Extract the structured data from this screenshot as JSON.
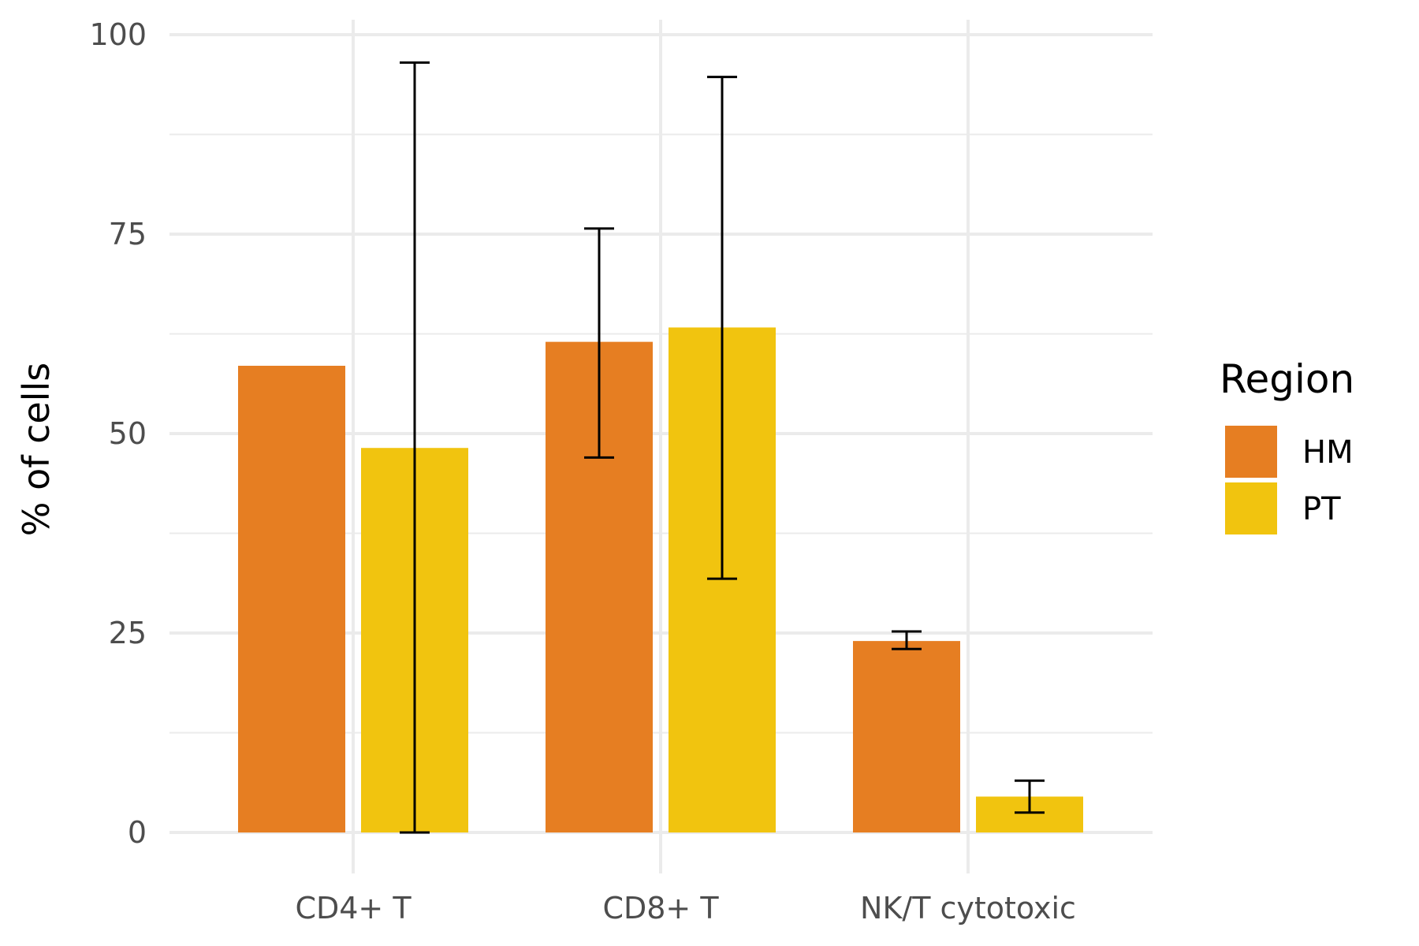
{
  "chart_data": {
    "type": "bar",
    "categories": [
      "CD4+ T",
      "CD8+ T",
      "NK/T cytotoxic"
    ],
    "ylabel": "% of cells",
    "xlabel": "",
    "ylim": [
      0,
      100
    ],
    "y_ticks": [
      "0",
      "25",
      "50",
      "75",
      "100"
    ],
    "grid": true,
    "legend": {
      "title": "Region",
      "position": "right"
    },
    "series": [
      {
        "name": "HM",
        "color": "#E67E22",
        "values": [
          58.5,
          61.5,
          24.0
        ],
        "error_low": [
          null,
          47.0,
          23.0
        ],
        "error_high": [
          null,
          75.7,
          25.2
        ]
      },
      {
        "name": "PT",
        "color": "#F1C40F",
        "values": [
          48.2,
          63.3,
          4.5
        ],
        "error_low": [
          0.0,
          31.8,
          2.5
        ],
        "error_high": [
          96.5,
          94.7,
          6.5
        ]
      }
    ]
  }
}
